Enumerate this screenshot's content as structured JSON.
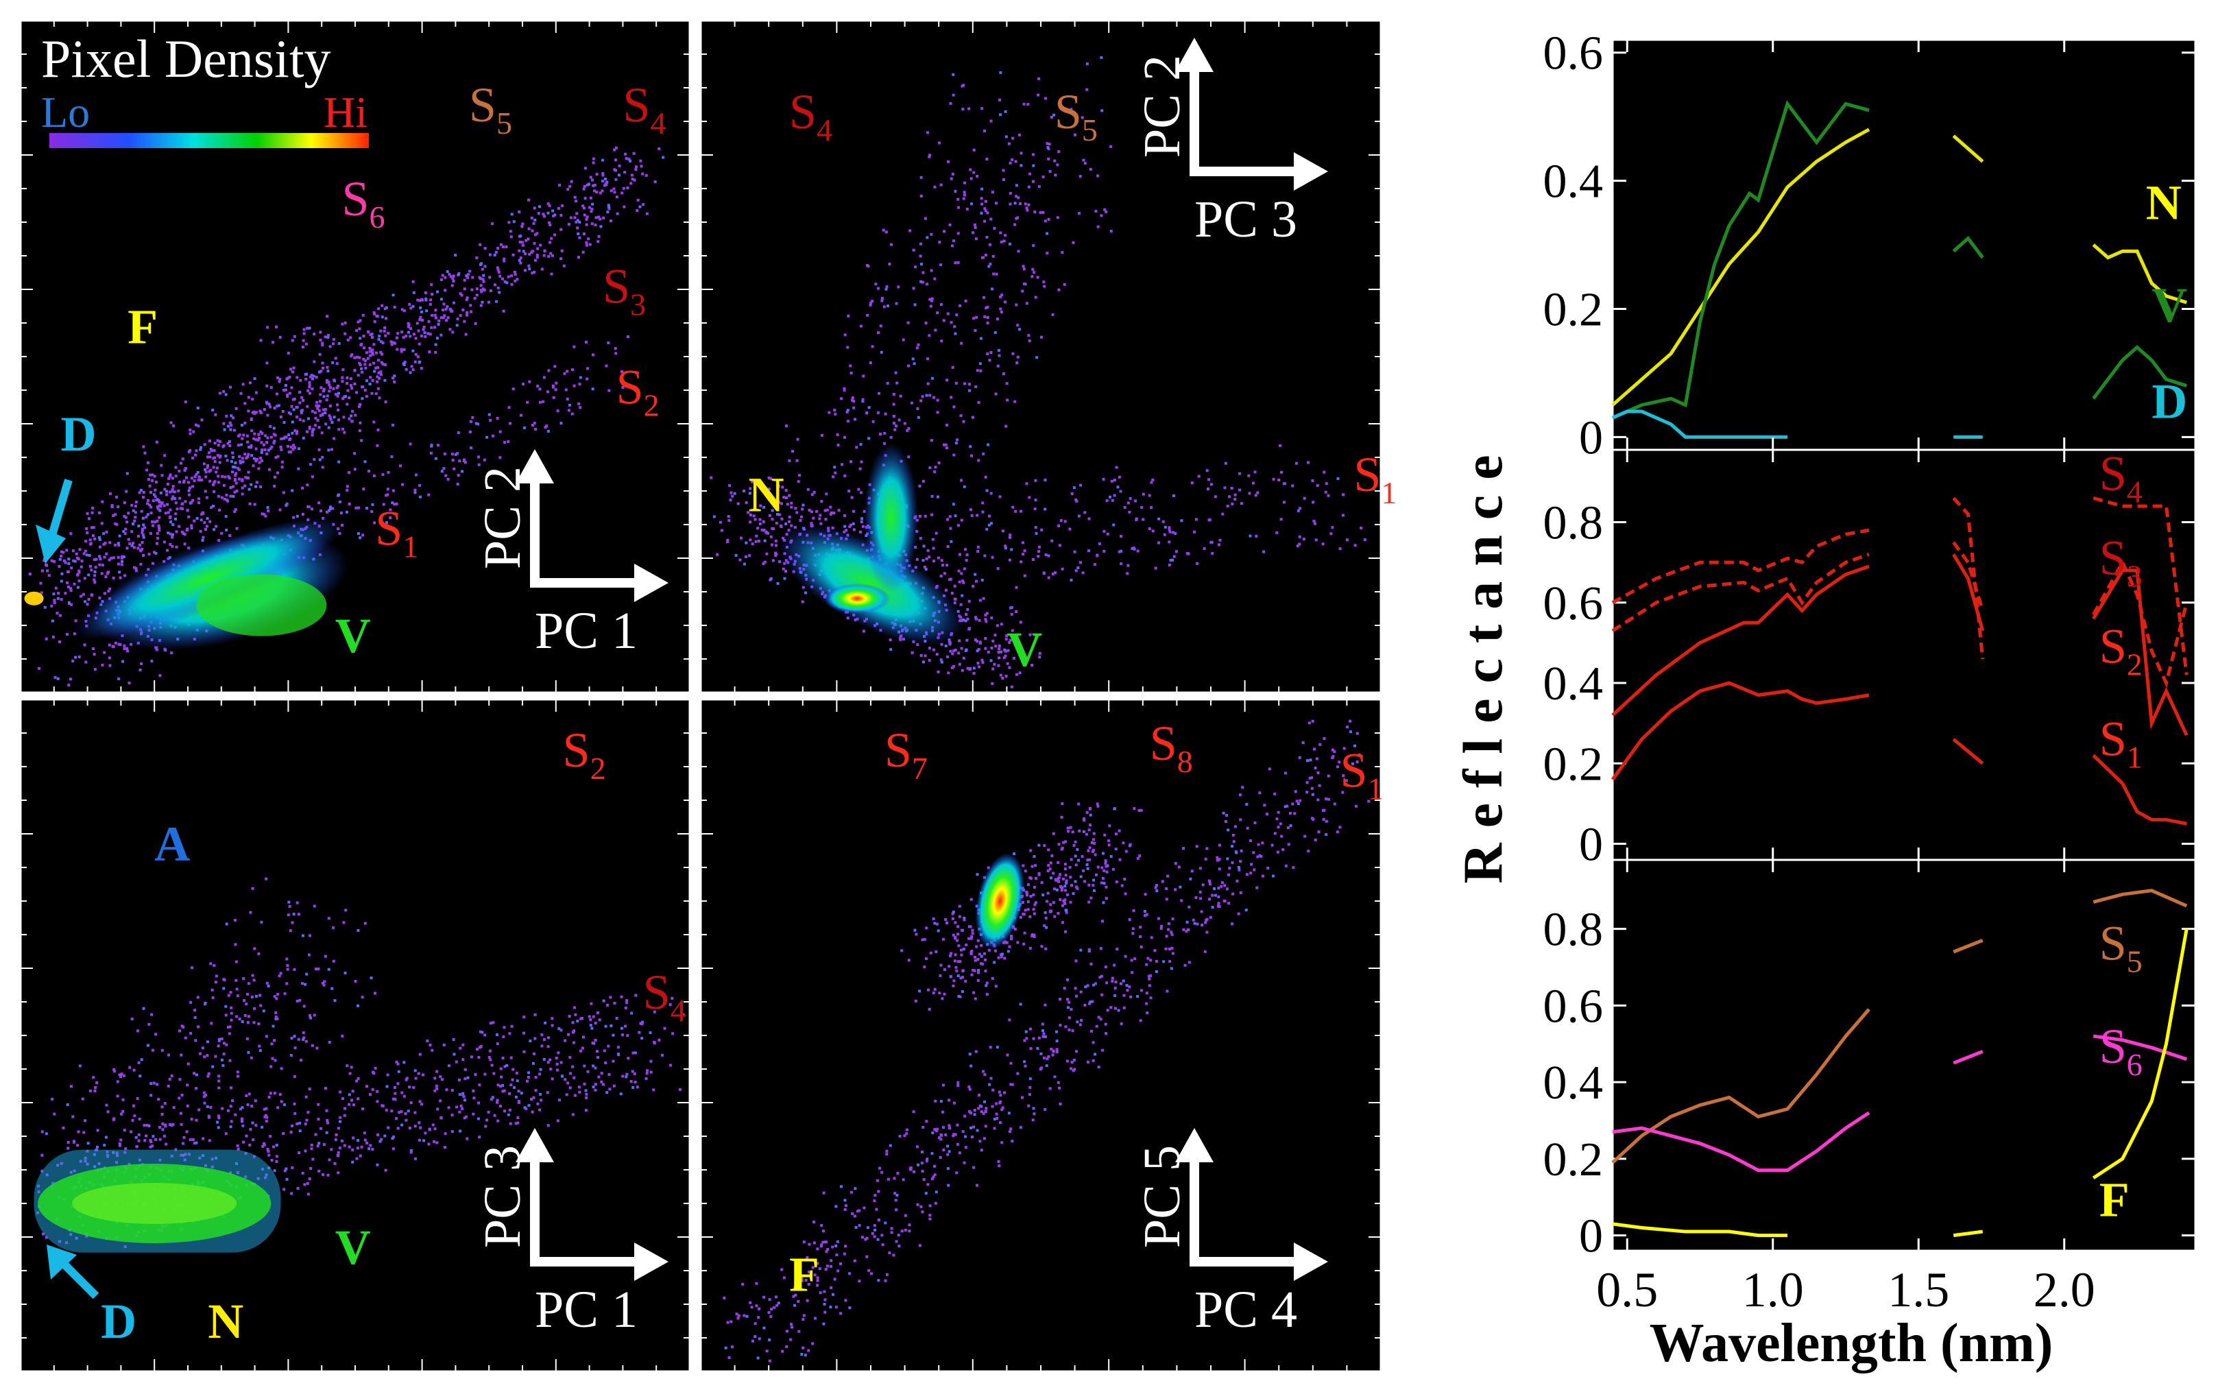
{
  "colors": {
    "lo": "#2a7bd8",
    "hi": "#ff1a1a",
    "F": "#ffff00",
    "D": "#19b8e6",
    "N": "#ffee00",
    "V": "#22dd22",
    "S": "#ff2a1a",
    "S_dark": "#c81010",
    "S5": "#c8713a",
    "S6": "#ff3aa8",
    "A": "#1f6fe0",
    "axis": "#ffffff"
  },
  "legend": {
    "title": "Pixel Density",
    "lo": "Lo",
    "hi": "Hi"
  },
  "chart_data": [
    {
      "type": "scatter",
      "subtype": "density",
      "panel": "PC1 vs PC2",
      "x_axis": "PC 1",
      "y_axis": "PC 2",
      "labels": [
        {
          "text": "F",
          "class": "F",
          "at": [
            0.16,
            0.52
          ]
        },
        {
          "text": "D",
          "class": "D",
          "at": [
            0.06,
            0.36
          ]
        },
        {
          "text": "V",
          "class": "V",
          "at": [
            0.47,
            0.06
          ]
        },
        {
          "text": "S",
          "sub": "1",
          "class": "S",
          "at": [
            0.53,
            0.22
          ]
        },
        {
          "text": "S",
          "sub": "2",
          "class": "S",
          "at": [
            0.89,
            0.43
          ]
        },
        {
          "text": "S",
          "sub": "3",
          "class": "S_dark",
          "at": [
            0.87,
            0.58
          ]
        },
        {
          "text": "S",
          "sub": "4",
          "class": "S_dark",
          "at": [
            0.9,
            0.85
          ]
        },
        {
          "text": "S",
          "sub": "5",
          "class": "S5",
          "at": [
            0.67,
            0.85
          ]
        },
        {
          "text": "S",
          "sub": "6",
          "class": "S6",
          "at": [
            0.48,
            0.71
          ]
        }
      ],
      "cluster_peak": [
        0.01,
        0.14
      ]
    },
    {
      "type": "scatter",
      "subtype": "density",
      "panel": "PC3 vs PC2",
      "x_axis": "PC 3",
      "y_axis": "PC 2",
      "labels": [
        {
          "text": "N",
          "class": "N",
          "at": [
            0.07,
            0.27
          ]
        },
        {
          "text": "V",
          "class": "V",
          "at": [
            0.45,
            0.04
          ]
        },
        {
          "text": "S",
          "sub": "1",
          "class": "S",
          "at": [
            0.96,
            0.3
          ]
        },
        {
          "text": "S",
          "sub": "4",
          "class": "S_dark",
          "at": [
            0.13,
            0.84
          ]
        },
        {
          "text": "S",
          "sub": "5",
          "class": "S5",
          "at": [
            0.52,
            0.84
          ]
        }
      ],
      "cluster_peak": [
        0.25,
        0.14
      ]
    },
    {
      "type": "scatter",
      "subtype": "density",
      "panel": "PC1 vs PC3",
      "x_axis": "PC 1",
      "y_axis": "PC 3",
      "labels": [
        {
          "text": "A",
          "class": "A",
          "at": [
            0.2,
            0.76
          ]
        },
        {
          "text": "D",
          "class": "D",
          "at": [
            0.12,
            0.05
          ]
        },
        {
          "text": "N",
          "class": "N",
          "at": [
            0.28,
            0.05
          ]
        },
        {
          "text": "V",
          "class": "V",
          "at": [
            0.47,
            0.16
          ]
        },
        {
          "text": "S",
          "sub": "2",
          "class": "S",
          "at": [
            0.81,
            0.9
          ]
        },
        {
          "text": "S",
          "sub": "4",
          "class": "S_dark",
          "at": [
            0.93,
            0.54
          ]
        }
      ],
      "cluster_peak": [
        0.12,
        0.25
      ]
    },
    {
      "type": "scatter",
      "subtype": "density",
      "panel": "PC4 vs PC5",
      "x_axis": "PC 4",
      "y_axis": "PC 5",
      "labels": [
        {
          "text": "F",
          "class": "F",
          "at": [
            0.13,
            0.12
          ]
        },
        {
          "text": "S",
          "sub": "7",
          "class": "S",
          "at": [
            0.27,
            0.9
          ]
        },
        {
          "text": "S",
          "sub": "8",
          "class": "S",
          "at": [
            0.66,
            0.91
          ]
        },
        {
          "text": "S",
          "sub": "1",
          "class": "S",
          "at": [
            0.94,
            0.87
          ]
        }
      ],
      "cluster_peak": [
        0.44,
        0.72
      ]
    },
    {
      "type": "line",
      "panel": "reflectance-top",
      "ylim": [
        -0.02,
        0.62
      ],
      "yticks": [
        "0",
        "0.2",
        "0.4",
        "0.6"
      ],
      "series": [
        {
          "name": "N",
          "color": "#e6e600",
          "x": [
            0.45,
            0.55,
            0.65,
            0.75,
            0.85,
            0.95,
            1.05,
            1.15,
            1.25,
            1.33,
            1.62,
            1.72,
            2.1,
            2.15,
            2.2,
            2.25,
            2.3,
            2.35,
            2.42
          ],
          "y": [
            0.05,
            0.09,
            0.13,
            0.2,
            0.27,
            0.32,
            0.39,
            0.43,
            0.46,
            0.48,
            0.47,
            0.43,
            0.3,
            0.28,
            0.29,
            0.29,
            0.24,
            0.22,
            0.21
          ]
        },
        {
          "name": "V",
          "color": "#1f8a1f",
          "x": [
            0.45,
            0.55,
            0.65,
            0.7,
            0.75,
            0.8,
            0.85,
            0.92,
            0.95,
            1.05,
            1.1,
            1.15,
            1.25,
            1.33,
            1.62,
            1.67,
            1.72,
            2.1,
            2.15,
            2.2,
            2.25,
            2.3,
            2.35,
            2.42
          ],
          "y": [
            0.03,
            0.05,
            0.06,
            0.05,
            0.18,
            0.27,
            0.33,
            0.38,
            0.37,
            0.52,
            0.49,
            0.46,
            0.52,
            0.51,
            0.29,
            0.31,
            0.28,
            0.06,
            0.09,
            0.12,
            0.14,
            0.12,
            0.09,
            0.08
          ]
        },
        {
          "name": "D",
          "color": "#19c0d8",
          "x": [
            0.45,
            0.5,
            0.55,
            0.6,
            0.65,
            0.7,
            0.8,
            0.95,
            1.05,
            1.33,
            1.62,
            1.72,
            2.1,
            2.42
          ],
          "y": [
            0.03,
            0.04,
            0.04,
            0.03,
            0.02,
            0.0,
            0.0,
            0.0,
            0.0,
            0.0,
            0.0,
            0.0,
            0.0,
            0.0
          ]
        }
      ],
      "labels": [
        {
          "text": "N",
          "color": "#ffff00",
          "at": [
            2.28,
            0.34
          ]
        },
        {
          "text": "V",
          "color": "#1f8a1f",
          "at": [
            2.3,
            0.18
          ]
        },
        {
          "text": "D",
          "color": "#19c0d8",
          "at": [
            2.3,
            0.03
          ]
        }
      ]
    },
    {
      "type": "line",
      "panel": "reflectance-middle",
      "ylim": [
        -0.04,
        0.98
      ],
      "yticks": [
        "0",
        "0.2",
        "0.4",
        "0.6",
        "0.8"
      ],
      "series": [
        {
          "name": "S4",
          "color": "#e02010",
          "dash": true,
          "x": [
            0.45,
            0.6,
            0.75,
            0.9,
            0.95,
            1.05,
            1.1,
            1.15,
            1.25,
            1.33,
            1.62,
            1.67,
            1.72,
            2.1,
            2.2,
            2.25,
            2.3,
            2.35,
            2.42
          ],
          "y": [
            0.6,
            0.66,
            0.7,
            0.7,
            0.68,
            0.71,
            0.7,
            0.74,
            0.77,
            0.78,
            0.86,
            0.82,
            0.46,
            0.86,
            0.84,
            0.84,
            0.84,
            0.84,
            0.42
          ]
        },
        {
          "name": "S3",
          "color": "#e02010",
          "dash": true,
          "x": [
            0.45,
            0.6,
            0.75,
            0.9,
            0.95,
            1.05,
            1.1,
            1.15,
            1.25,
            1.33,
            1.62,
            1.67,
            1.72,
            2.1,
            2.2,
            2.25,
            2.3,
            2.35,
            2.42
          ],
          "y": [
            0.53,
            0.6,
            0.64,
            0.65,
            0.63,
            0.66,
            0.6,
            0.65,
            0.7,
            0.72,
            0.75,
            0.7,
            0.58,
            0.57,
            0.7,
            0.62,
            0.48,
            0.4,
            0.6
          ]
        },
        {
          "name": "S2",
          "color": "#e02010",
          "x": [
            0.45,
            0.6,
            0.75,
            0.9,
            0.95,
            1.05,
            1.1,
            1.15,
            1.25,
            1.33,
            1.62,
            1.67,
            1.72,
            2.1,
            2.2,
            2.25,
            2.3,
            2.35,
            2.42
          ],
          "y": [
            0.32,
            0.42,
            0.5,
            0.55,
            0.55,
            0.62,
            0.58,
            0.62,
            0.67,
            0.69,
            0.72,
            0.66,
            0.53,
            0.56,
            0.68,
            0.68,
            0.3,
            0.38,
            0.27
          ]
        },
        {
          "name": "S1",
          "color": "#e02010",
          "x": [
            0.45,
            0.55,
            0.65,
            0.75,
            0.85,
            0.95,
            1.05,
            1.1,
            1.15,
            1.25,
            1.33,
            1.62,
            1.67,
            1.72,
            2.1,
            2.2,
            2.25,
            2.3,
            2.35,
            2.42
          ],
          "y": [
            0.16,
            0.26,
            0.33,
            0.38,
            0.4,
            0.37,
            0.38,
            0.36,
            0.35,
            0.36,
            0.37,
            0.26,
            0.23,
            0.2,
            0.22,
            0.15,
            0.08,
            0.06,
            0.06,
            0.05
          ]
        }
      ],
      "labels": [
        {
          "text": "S",
          "sub": "4",
          "color": "#c81010",
          "at": [
            2.12,
            0.88
          ]
        },
        {
          "text": "S",
          "sub": "3",
          "color": "#c81010",
          "at": [
            2.12,
            0.67
          ]
        },
        {
          "text": "S",
          "sub": "2",
          "color": "#ff2a1a",
          "at": [
            2.12,
            0.45
          ]
        },
        {
          "text": "S",
          "sub": "1",
          "color": "#ff2a1a",
          "at": [
            2.12,
            0.22
          ]
        }
      ]
    },
    {
      "type": "line",
      "panel": "reflectance-bottom",
      "ylim": [
        -0.04,
        0.98
      ],
      "yticks": [
        "0",
        "0.2",
        "0.4",
        "0.6",
        "0.8"
      ],
      "series": [
        {
          "name": "S5",
          "color": "#c8713a",
          "x": [
            0.45,
            0.55,
            0.65,
            0.75,
            0.85,
            0.95,
            1.05,
            1.15,
            1.25,
            1.33,
            1.62,
            1.72,
            2.1,
            2.2,
            2.3,
            2.42
          ],
          "y": [
            0.19,
            0.26,
            0.31,
            0.34,
            0.36,
            0.31,
            0.33,
            0.42,
            0.52,
            0.59,
            0.74,
            0.77,
            0.87,
            0.89,
            0.9,
            0.86
          ]
        },
        {
          "name": "S6",
          "color": "#ff3ad0",
          "x": [
            0.45,
            0.55,
            0.65,
            0.75,
            0.85,
            0.95,
            1.05,
            1.15,
            1.25,
            1.33,
            1.62,
            1.72,
            2.1,
            2.2,
            2.3,
            2.42
          ],
          "y": [
            0.27,
            0.28,
            0.26,
            0.24,
            0.21,
            0.17,
            0.17,
            0.22,
            0.28,
            0.32,
            0.45,
            0.48,
            0.52,
            0.51,
            0.49,
            0.46
          ]
        },
        {
          "name": "F",
          "color": "#ffff00",
          "x": [
            0.45,
            0.55,
            0.7,
            0.85,
            0.95,
            1.05,
            1.33,
            1.62,
            1.72,
            2.1,
            2.2,
            2.3,
            2.35,
            2.42
          ],
          "y": [
            0.03,
            0.02,
            0.01,
            0.01,
            0.0,
            0.0,
            0.0,
            0.0,
            0.01,
            0.15,
            0.2,
            0.35,
            0.5,
            0.8
          ]
        }
      ],
      "labels": [
        {
          "text": "S",
          "sub": "5",
          "color": "#c8713a",
          "at": [
            2.12,
            0.72
          ]
        },
        {
          "text": "S",
          "sub": "6",
          "color": "#ff3ad0",
          "at": [
            2.12,
            0.45
          ]
        },
        {
          "text": "F",
          "color": "#ffff00",
          "at": [
            2.12,
            0.05
          ]
        }
      ]
    }
  ],
  "reflectance": {
    "ylabel": "Reflectance",
    "xlabel": "Wavelength (nm)",
    "xticks": [
      "0.5",
      "1.0",
      "1.5",
      "2.0"
    ],
    "xlim": [
      0.45,
      2.45
    ]
  }
}
